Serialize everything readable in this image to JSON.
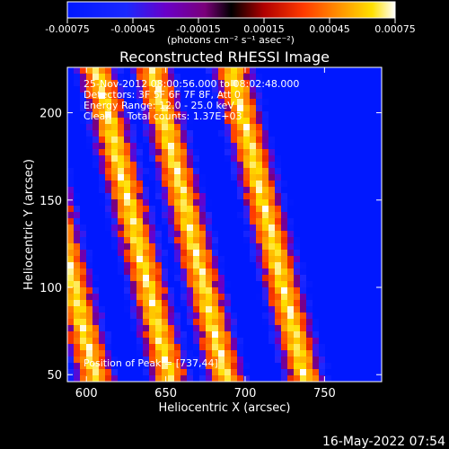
{
  "chart_data": {
    "type": "heatmap",
    "title": "Reconstructed RHESSI Image",
    "xlabel": "Heliocentric X (arcsec)",
    "ylabel": "Heliocentric Y (arcsec)",
    "xlim": [
      588,
      786
    ],
    "ylim": [
      46,
      226
    ],
    "x_ticks": [
      600,
      650,
      700,
      750
    ],
    "y_ticks": [
      50,
      100,
      150,
      200
    ],
    "colorbar": {
      "range": [
        -0.00075,
        0.00075
      ],
      "ticks": [
        "-0.00075",
        "-0.00045",
        "-0.00015",
        "0.00015",
        "0.00045",
        "0.00075"
      ],
      "units": "(photons cm⁻² s⁻¹ asec⁻²)"
    },
    "annotation_lines": [
      "25-Nov-2012 08:00:56.000 to 08:02:48.000",
      "Detectors: 3F 5F 6F 7F 8F, Att 0",
      "Energy Range: 12.0 - 25.0 keV",
      "Clean     Total counts: 1.37E+03"
    ],
    "peak_text": "Position of Peak = [737,44]",
    "stripe_x_at_y50": [
      605,
      652,
      687,
      737
    ],
    "stripe_slope_x_per_y": -0.26
  },
  "footer_timestamp": "16-May-2022 07:54"
}
